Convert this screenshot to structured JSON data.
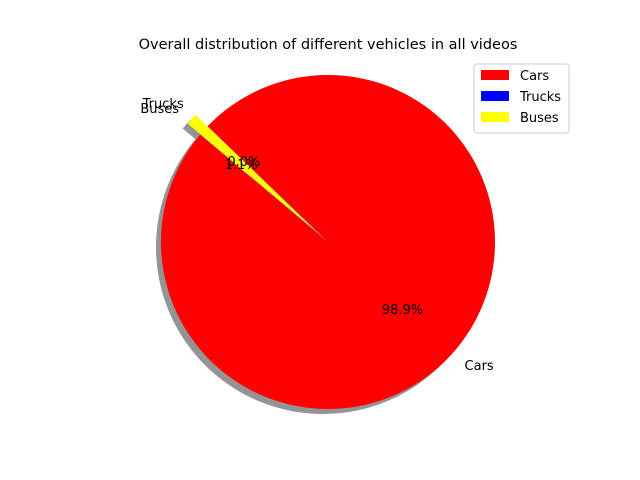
{
  "chart_data": {
    "type": "pie",
    "title": "Overall distribution of different vehicles in all videos",
    "labels": [
      "Cars",
      "Trucks",
      "Buses"
    ],
    "values": [
      98.9,
      0.0,
      1.1
    ],
    "autopct": [
      "98.9%",
      "0.0%",
      "1.1%"
    ],
    "colors": [
      "#ff0000",
      "#0000ff",
      "#ffff00"
    ],
    "explode": true,
    "shadow": true,
    "legend_position": "top-right",
    "legend": [
      "Cars",
      "Trucks",
      "Buses"
    ]
  }
}
